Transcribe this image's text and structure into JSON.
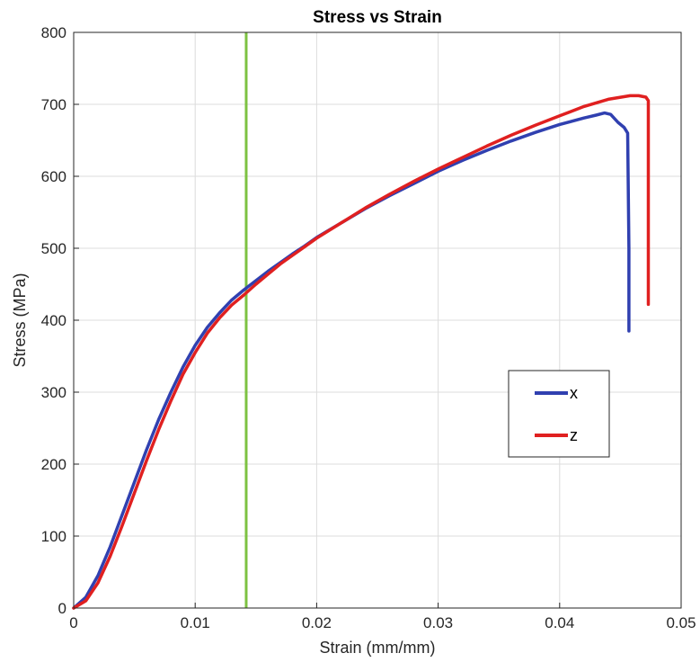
{
  "chart_data": {
    "type": "line",
    "title": "Stress vs Strain",
    "xlabel": "Strain (mm/mm)",
    "ylabel": "Stress (MPa)",
    "xlim": [
      0,
      0.05
    ],
    "ylim": [
      0,
      800
    ],
    "xticks": [
      0,
      0.01,
      0.02,
      0.03,
      0.04,
      0.05
    ],
    "xtick_labels": [
      "0",
      "0.01",
      "0.02",
      "0.03",
      "0.04",
      "0.05"
    ],
    "yticks": [
      0,
      100,
      200,
      300,
      400,
      500,
      600,
      700,
      800
    ],
    "ytick_labels": [
      "0",
      "100",
      "200",
      "300",
      "400",
      "500",
      "600",
      "700",
      "800"
    ],
    "grid": true,
    "legend_position": "lower-right",
    "vertical_line": {
      "x": 0.0142,
      "color": "#7dc242"
    },
    "series": [
      {
        "name": "x",
        "color": "#3040b0",
        "x": [
          0,
          0.001,
          0.002,
          0.003,
          0.004,
          0.005,
          0.006,
          0.007,
          0.008,
          0.009,
          0.01,
          0.011,
          0.012,
          0.013,
          0.014,
          0.015,
          0.016,
          0.017,
          0.018,
          0.019,
          0.02,
          0.022,
          0.024,
          0.026,
          0.028,
          0.03,
          0.032,
          0.034,
          0.036,
          0.038,
          0.04,
          0.042,
          0.043,
          0.0437,
          0.0442,
          0.0448,
          0.0453,
          0.0456,
          0.0457,
          0.0457
        ],
        "y": [
          0,
          15,
          45,
          85,
          130,
          175,
          220,
          262,
          300,
          335,
          365,
          390,
          410,
          428,
          442,
          455,
          468,
          480,
          492,
          503,
          515,
          535,
          555,
          573,
          590,
          607,
          622,
          636,
          649,
          661,
          672,
          681,
          685,
          688,
          686,
          675,
          668,
          660,
          500,
          385
        ]
      },
      {
        "name": "z",
        "color": "#e02020",
        "x": [
          0,
          0.001,
          0.002,
          0.003,
          0.004,
          0.005,
          0.006,
          0.007,
          0.008,
          0.009,
          0.01,
          0.011,
          0.012,
          0.013,
          0.014,
          0.015,
          0.016,
          0.017,
          0.018,
          0.019,
          0.02,
          0.022,
          0.024,
          0.026,
          0.028,
          0.03,
          0.032,
          0.034,
          0.036,
          0.038,
          0.04,
          0.042,
          0.044,
          0.0458,
          0.0465,
          0.0471,
          0.0473,
          0.0473
        ],
        "y": [
          0,
          10,
          35,
          72,
          115,
          160,
          205,
          248,
          288,
          325,
          355,
          382,
          403,
          421,
          435,
          450,
          464,
          478,
          490,
          502,
          514,
          535,
          556,
          575,
          593,
          610,
          626,
          642,
          657,
          671,
          684,
          697,
          707,
          712,
          712,
          710,
          705,
          422
        ]
      }
    ]
  }
}
